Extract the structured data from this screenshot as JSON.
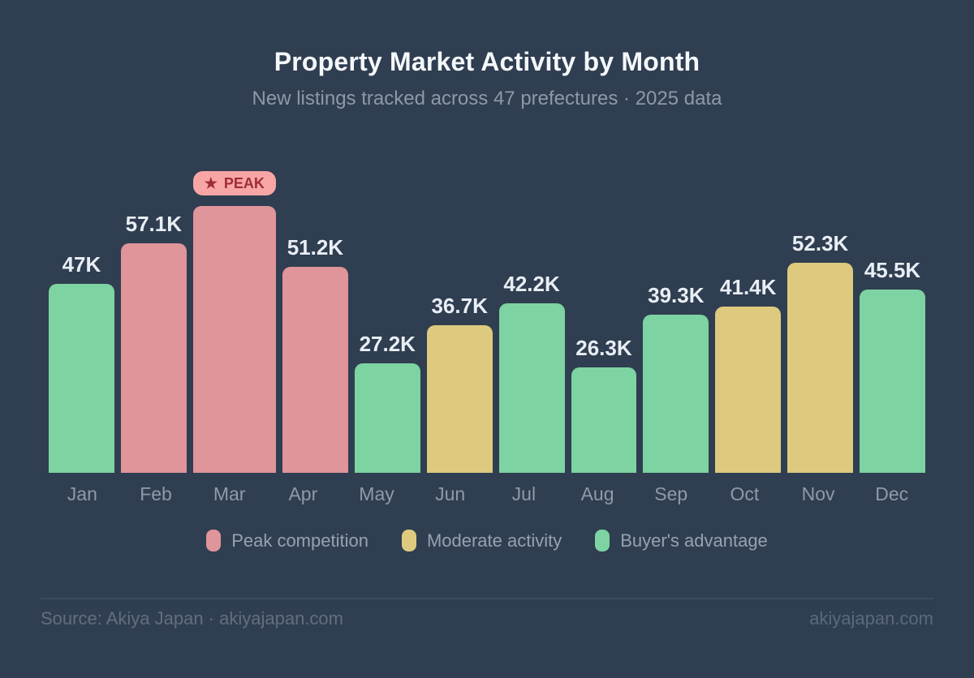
{
  "chart_data": {
    "type": "bar",
    "title": "Property Market Activity by Month",
    "subtitle": "New listings tracked across 47 prefectures · 2025 data",
    "categories": [
      "Jan",
      "Feb",
      "Mar",
      "Apr",
      "May",
      "Jun",
      "Jul",
      "Aug",
      "Sep",
      "Oct",
      "Nov",
      "Dec"
    ],
    "values": [
      47.0,
      57.1,
      72.5,
      51.2,
      27.2,
      36.7,
      42.2,
      26.3,
      39.3,
      41.4,
      52.3,
      45.5
    ],
    "value_labels": [
      "47K",
      "57.1K",
      "",
      "51.2K",
      "27.2K",
      "36.7K",
      "42.2K",
      "26.3K",
      "39.3K",
      "41.4K",
      "52.3K",
      "45.5K"
    ],
    "series_key_by_month": [
      "buyers",
      "peak",
      "peak",
      "peak",
      "buyers",
      "moderate",
      "buyers",
      "buyers",
      "buyers",
      "moderate",
      "moderate",
      "buyers"
    ],
    "ylim": [
      0,
      75
    ],
    "grid": false,
    "legend_position": "bottom",
    "annotations": [
      {
        "category": "Mar",
        "badge": "PEAK",
        "note": "bar unlabeled; value estimated from bar height ≈ 72.5K"
      }
    ]
  },
  "peak_badge": {
    "icon": "★",
    "text": "PEAK",
    "bg": "#f7a6a5",
    "text_color": "#9e2d38"
  },
  "legend": [
    {
      "key": "peak",
      "label": "Peak competition",
      "color": "#df959a"
    },
    {
      "key": "moderate",
      "label": "Moderate activity",
      "color": "#ddca7f"
    },
    {
      "key": "buyers",
      "label": "Buyer's advantage",
      "color": "#7dd3a1"
    }
  ],
  "footer": {
    "source": "Source: Akiya Japan · akiyajapan.com",
    "watermark": "akiyajapan.com"
  },
  "colors": {
    "background": "#2f3e50",
    "bar_peak": "#df959a",
    "bar_moderate": "#ddca7f",
    "bar_buyers": "#7dd3a1",
    "value_label": "#e9eef5",
    "axis_label": "#8e9aaa",
    "divider": "#3d4b5e"
  }
}
